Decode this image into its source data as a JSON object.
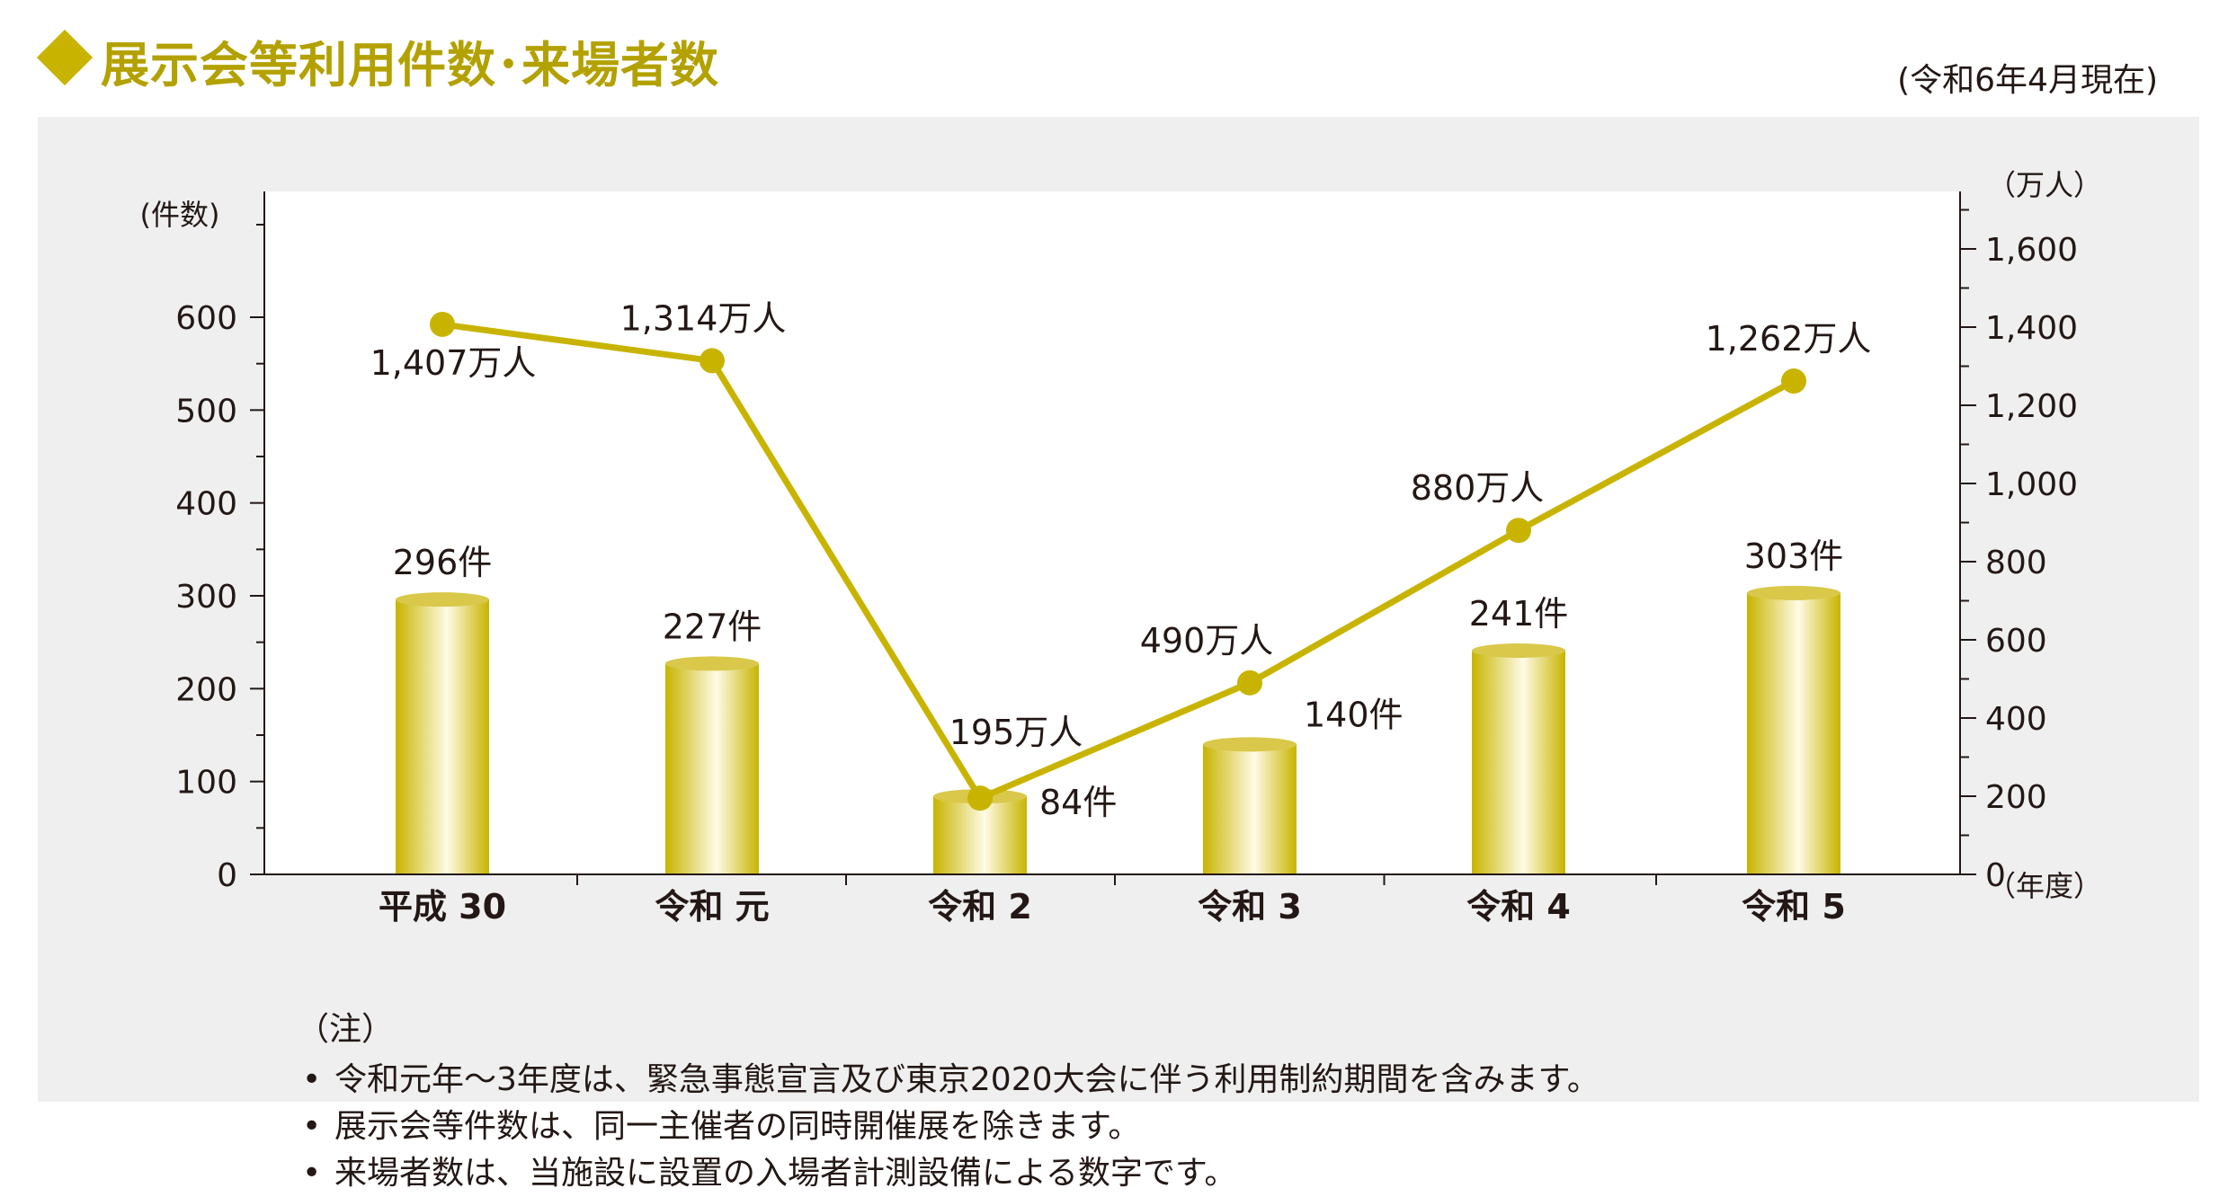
{
  "header": {
    "title": "展示会等利用件数･来場者数",
    "date_note": "(令和6年4月現在)"
  },
  "chart_data": {
    "type": "bar+line",
    "categories": [
      "平成 30",
      "令和 元",
      "令和 2",
      "令和 3",
      "令和 4",
      "令和 5"
    ],
    "series": [
      {
        "name": "",
        "type": "bar",
        "axis": "left",
        "values": [
          296,
          227,
          84,
          140,
          241,
          303
        ],
        "labels": [
          "296件",
          "227件",
          "84件",
          "140件",
          "241件",
          "303件"
        ]
      },
      {
        "name": "",
        "type": "line",
        "axis": "right",
        "values": [
          1407,
          1314,
          195,
          490,
          880,
          1262
        ],
        "labels": [
          "1,407万人",
          "1,314万人",
          "195万人",
          "490万人",
          "880万人",
          "1,262万人"
        ]
      }
    ],
    "left_axis": {
      "label": "(件数)",
      "range": [
        0,
        600
      ],
      "ticks": [
        "0",
        "100",
        "200",
        "300",
        "400",
        "500",
        "600"
      ]
    },
    "right_axis": {
      "label": "（万人）",
      "range": [
        0,
        1600
      ],
      "ticks": [
        "0",
        "200",
        "400",
        "600",
        "800",
        "1,000",
        "1,200",
        "1,400",
        "1,600"
      ]
    },
    "x_axis_label": "（年度）",
    "grid": false,
    "colors": {
      "line": "#c8b400",
      "bar_dark": "#c8b400",
      "bar_light": "#fffbe6",
      "panel": "#efefef",
      "plot_bg": "#ffffff",
      "title": "#b3a100"
    }
  },
  "notes": {
    "heading": "（注）",
    "items": [
      "令和元年～3年度は、緊急事態宣言及び東京2020大会に伴う利用制約期間を含みます。",
      "展示会等件数は、同一主催者の同時開催展を除きます。",
      "来場者数は、当施設に設置の入場者計測設備による数字です。"
    ]
  }
}
